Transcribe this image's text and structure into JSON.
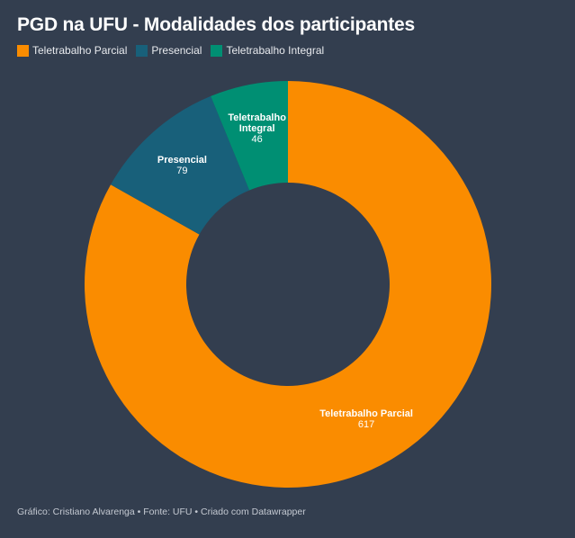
{
  "chart_data": {
    "type": "pie",
    "variant": "donut",
    "title": "PGD na UFU - Modalidades dos participantes",
    "categories": [
      "Teletrabalho Parcial",
      "Presencial",
      "Teletrabalho Integral"
    ],
    "values": [
      617,
      79,
      46
    ],
    "colors": [
      "#fa8c00",
      "#18607a",
      "#008f73"
    ],
    "label_lines": [
      [
        "Teletrabalho Parcial"
      ],
      [
        "Presencial"
      ],
      [
        "Teletrabalho",
        "Integral"
      ]
    ],
    "legend": "top-left",
    "order": "clockwise-from-top"
  },
  "header": {
    "title": "PGD na UFU - Modalidades dos participantes"
  },
  "legend": {
    "items": [
      {
        "label": "Teletrabalho Parcial",
        "color": "#fa8c00"
      },
      {
        "label": "Presencial",
        "color": "#18607a"
      },
      {
        "label": "Teletrabalho Integral",
        "color": "#008f73"
      }
    ]
  },
  "footer": {
    "text": "Gráfico: Cristiano Alvarenga • Fonte: UFU • Criado com Datawrapper"
  },
  "colors": {
    "background": "#333e4f"
  }
}
